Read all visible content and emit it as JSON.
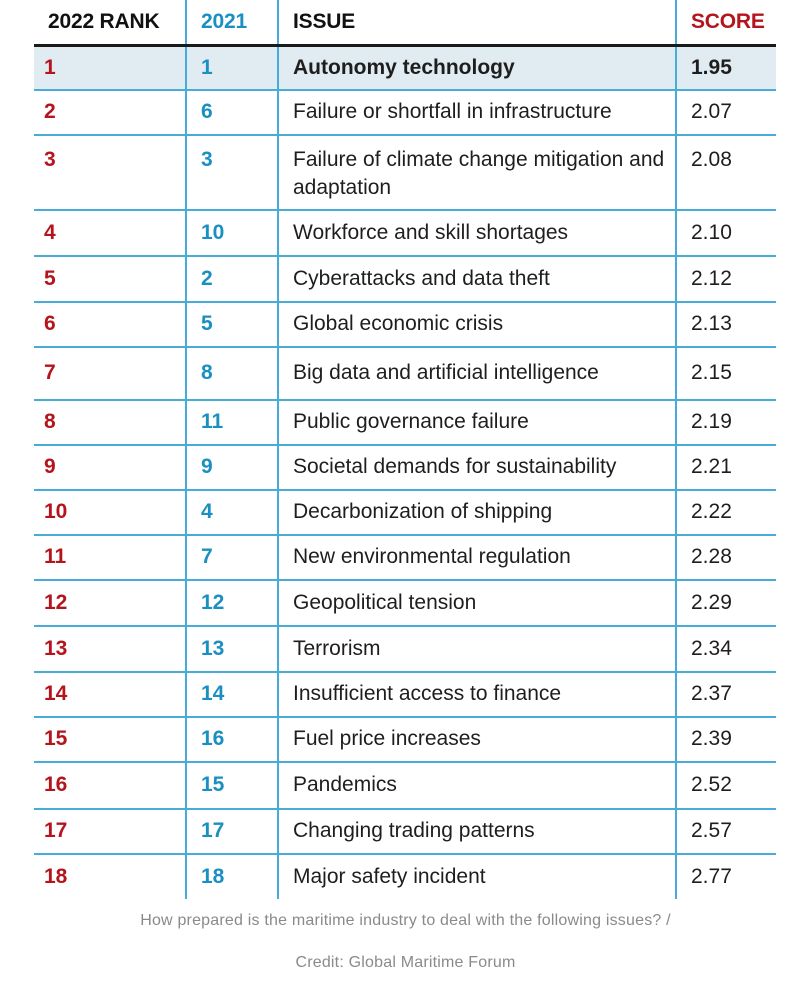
{
  "chart_data": {
    "type": "table",
    "columns": [
      "2022 RANK",
      "2021",
      "ISSUE",
      "SCORE"
    ],
    "rows": [
      {
        "rank_2022": "1",
        "rank_2021": "1",
        "issue": "Autonomy technology",
        "score": "1.95"
      },
      {
        "rank_2022": "2",
        "rank_2021": "6",
        "issue": "Failure or shortfall in infrastructure",
        "score": "2.07"
      },
      {
        "rank_2022": "3",
        "rank_2021": "3",
        "issue": "Failure of climate change mitigation and adaptation",
        "score": "2.08"
      },
      {
        "rank_2022": "4",
        "rank_2021": "10",
        "issue": "Workforce and skill shortages",
        "score": "2.10"
      },
      {
        "rank_2022": "5",
        "rank_2021": "2",
        "issue": "Cyberattacks and data theft",
        "score": "2.12"
      },
      {
        "rank_2022": "6",
        "rank_2021": "5",
        "issue": "Global economic crisis",
        "score": "2.13"
      },
      {
        "rank_2022": "7",
        "rank_2021": "8",
        "issue": "Big data and artificial intelligence",
        "score": "2.15"
      },
      {
        "rank_2022": "8",
        "rank_2021": "11",
        "issue": "Public governance failure",
        "score": "2.19"
      },
      {
        "rank_2022": "9",
        "rank_2021": "9",
        "issue": "Societal demands for sustainability",
        "score": "2.21"
      },
      {
        "rank_2022": "10",
        "rank_2021": "4",
        "issue": "Decarbonization of shipping",
        "score": "2.22"
      },
      {
        "rank_2022": "11",
        "rank_2021": "7",
        "issue": "New environmental regulation",
        "score": "2.28"
      },
      {
        "rank_2022": "12",
        "rank_2021": "12",
        "issue": "Geopolitical tension",
        "score": "2.29"
      },
      {
        "rank_2022": "13",
        "rank_2021": "13",
        "issue": "Terrorism",
        "score": "2.34"
      },
      {
        "rank_2022": "14",
        "rank_2021": "14",
        "issue": "Insufficient access to finance",
        "score": "2.37"
      },
      {
        "rank_2022": "15",
        "rank_2021": "16",
        "issue": "Fuel price increases",
        "score": "2.39"
      },
      {
        "rank_2022": "16",
        "rank_2021": "15",
        "issue": "Pandemics",
        "score": "2.52"
      },
      {
        "rank_2022": "17",
        "rank_2021": "17",
        "issue": "Changing trading patterns",
        "score": "2.57"
      },
      {
        "rank_2022": "18",
        "rank_2021": "18",
        "issue": "Major safety incident",
        "score": "2.77"
      }
    ],
    "highlighted_row": 0,
    "colors": {
      "rank_2022": "#b5141c",
      "rank_2021": "#1a8fc2",
      "score_header": "#b5141c",
      "grid": "#49acd8",
      "highlight_bg": "#e1ebf2"
    }
  },
  "caption": {
    "line1": "How prepared is the maritime industry to deal with the following issues? /",
    "line2": "Credit: Global Maritime Forum"
  }
}
